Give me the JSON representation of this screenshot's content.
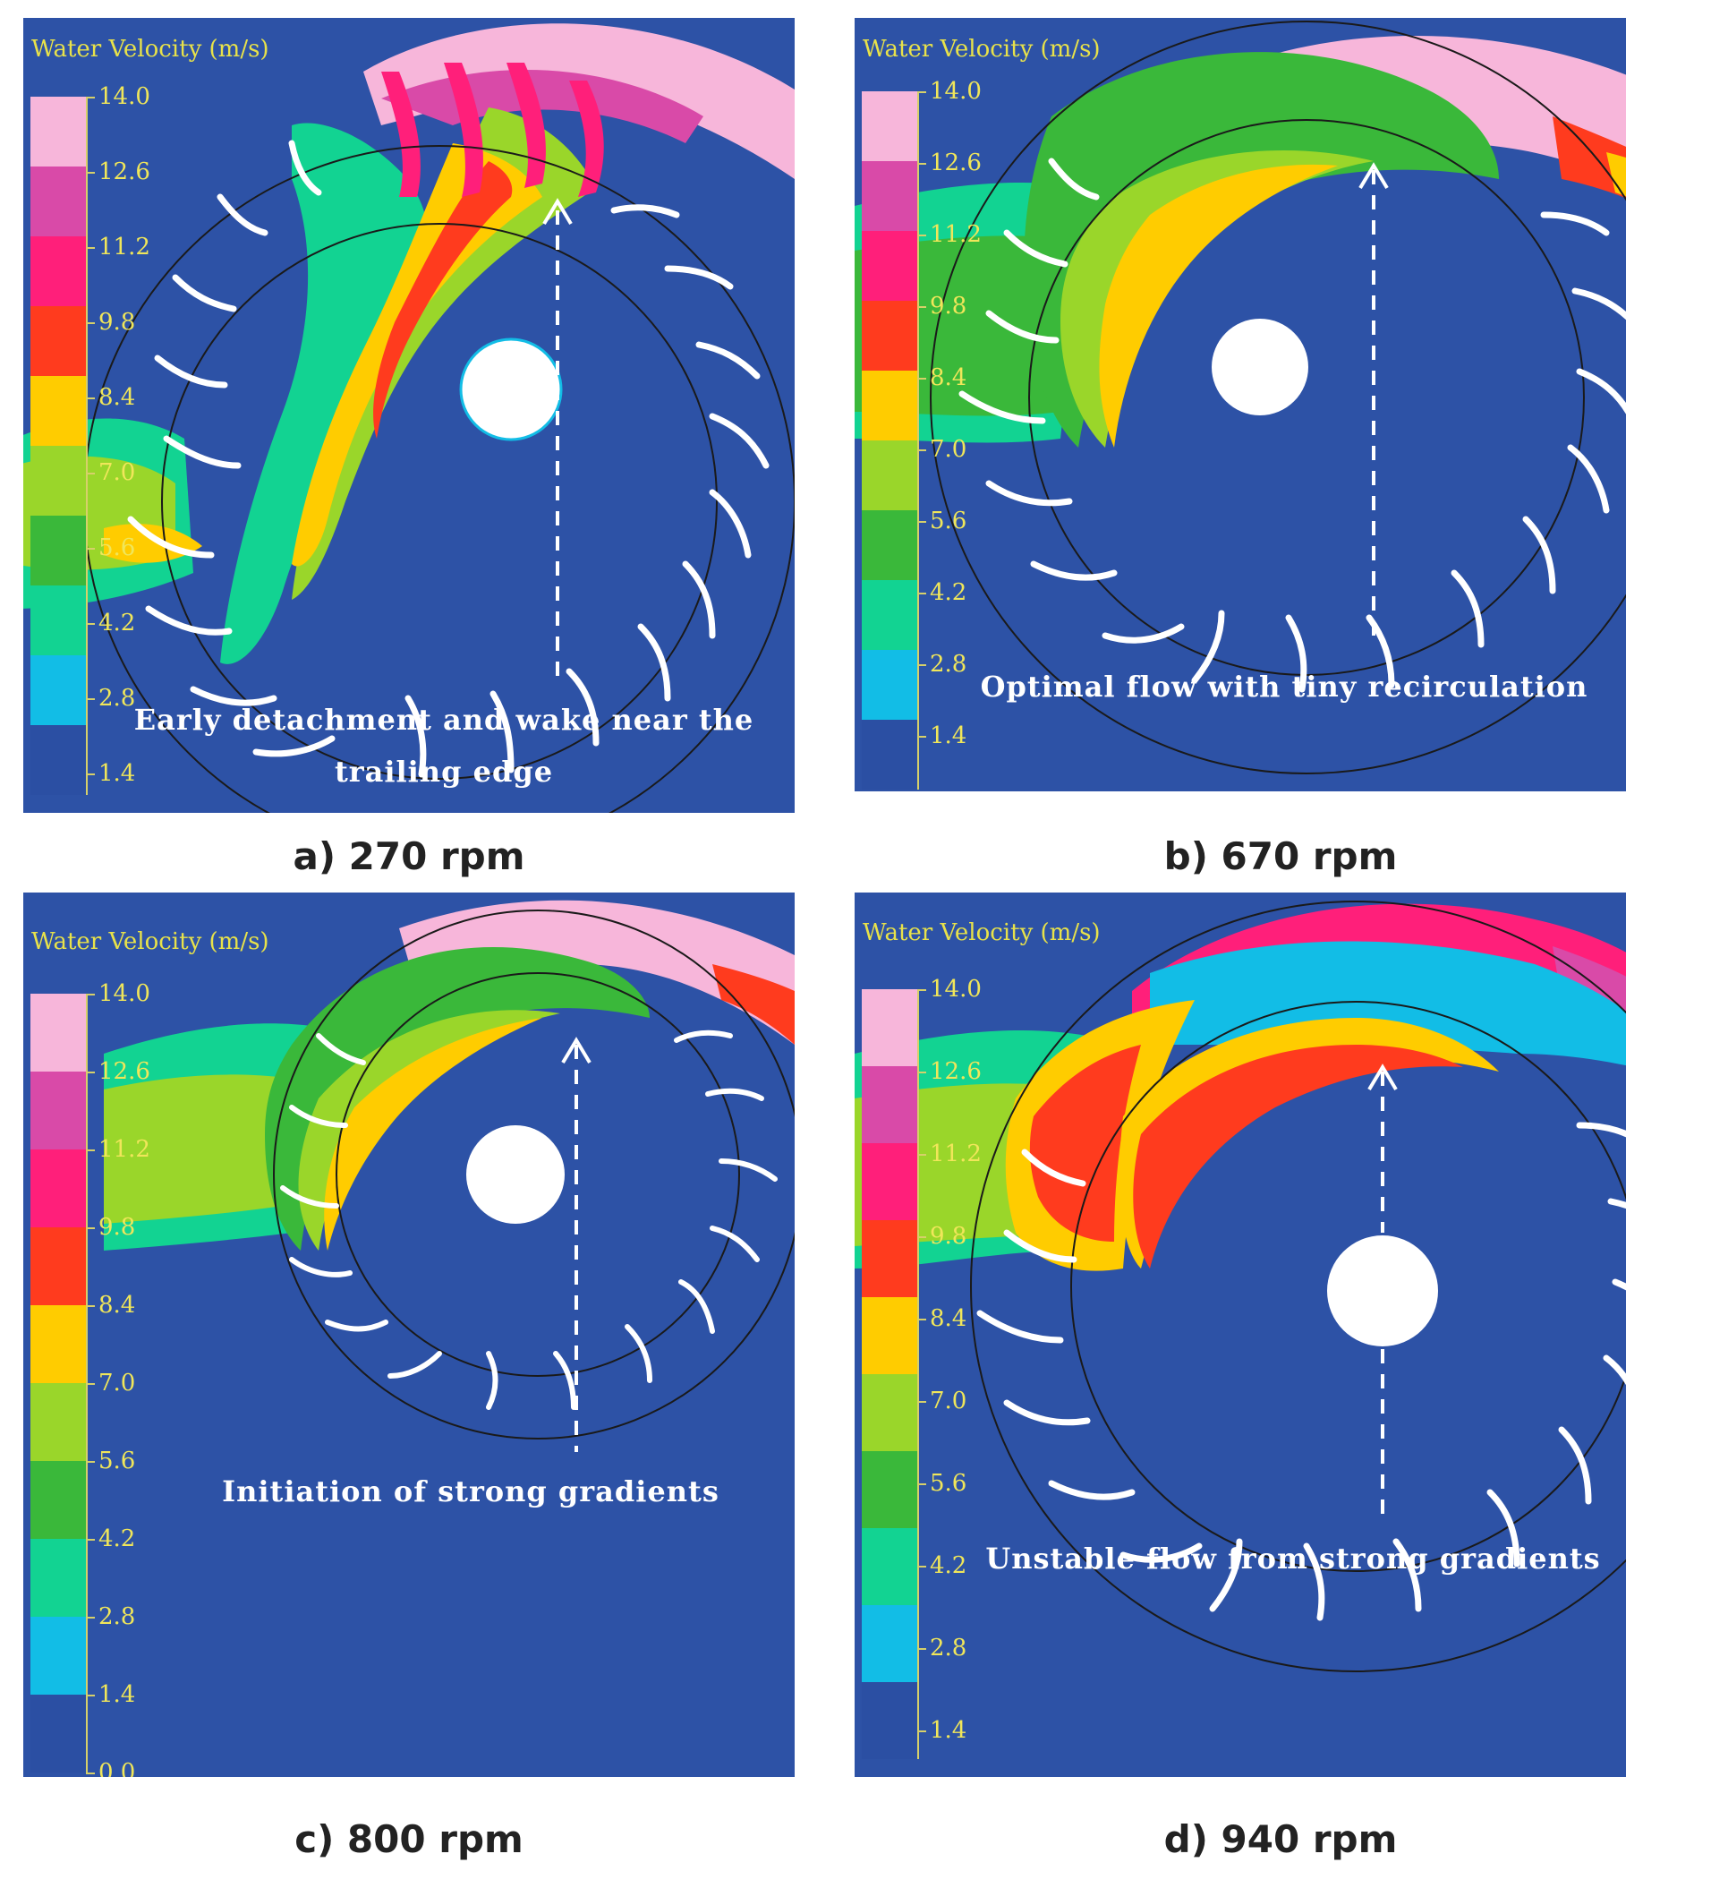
{
  "legend": {
    "title": "Water Velocity (m/s)",
    "colors": [
      "#2b4fa3",
      "#12bde6",
      "#12d392",
      "#3ab83a",
      "#9ad62a",
      "#ffcc00",
      "#ff3b1e",
      "#ff1f7a",
      "#d94aa8",
      "#f7b6da"
    ]
  },
  "panels": [
    {
      "caption": "a)  270 rpm",
      "annotation_lines": [
        "Early detachment and wake near the",
        "trailing edge"
      ],
      "ticks": [
        "14.0",
        "12.6",
        "11.2",
        "9.8",
        "8.4",
        "7.0",
        "5.6",
        "4.2",
        "2.8",
        "1.4"
      ]
    },
    {
      "caption": "b)  670 rpm",
      "annotation_lines": [
        "Optimal flow with tiny recirculation"
      ],
      "ticks": [
        "14.0",
        "12.6",
        "11.2",
        "9.8",
        "8.4",
        "7.0",
        "5.6",
        "4.2",
        "2.8",
        "1.4"
      ]
    },
    {
      "caption": "c)  800 rpm",
      "annotation_lines": [
        "Initiation of strong gradients"
      ],
      "ticks": [
        "14.0",
        "12.6",
        "11.2",
        "9.8",
        "8.4",
        "7.0",
        "5.6",
        "4.2",
        "2.8",
        "1.4",
        "0.0"
      ]
    },
    {
      "caption": "d)  940 rpm",
      "annotation_lines": [
        "Unstable flow from strong gradients"
      ],
      "ticks": [
        "14.0",
        "12.6",
        "11.2",
        "9.8",
        "8.4",
        "7.0",
        "5.6",
        "4.2",
        "2.8",
        "1.4"
      ]
    }
  ]
}
